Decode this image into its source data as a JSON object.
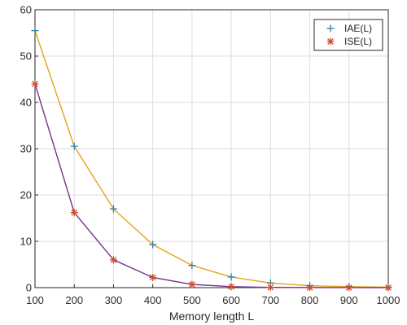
{
  "chart_data": {
    "type": "line",
    "title": "",
    "xlabel": "Memory length L",
    "ylabel": "",
    "x": [
      100,
      200,
      300,
      400,
      500,
      600,
      700,
      800,
      900,
      1000
    ],
    "xlim": [
      100,
      1000
    ],
    "ylim": [
      0,
      60
    ],
    "x_ticks": [
      100,
      200,
      300,
      400,
      500,
      600,
      700,
      800,
      900,
      1000
    ],
    "y_ticks": [
      0,
      10,
      20,
      30,
      40,
      50,
      60
    ],
    "grid": true,
    "legend_position": "top-right",
    "series": [
      {
        "name": "IAE(L)",
        "marker": "plus",
        "marker_color": "#2a7fa8",
        "line_color": "#e6a31a",
        "values": [
          55.5,
          30.5,
          17.0,
          9.3,
          4.8,
          2.3,
          1.0,
          0.4,
          0.2,
          0.1
        ]
      },
      {
        "name": "ISE(L)",
        "marker": "asterisk",
        "marker_color": "#d24a2b",
        "line_color": "#7b2f8e",
        "values": [
          44.0,
          16.2,
          6.0,
          2.2,
          0.7,
          0.2,
          0.05,
          0.02,
          0.01,
          0.0
        ]
      }
    ]
  }
}
